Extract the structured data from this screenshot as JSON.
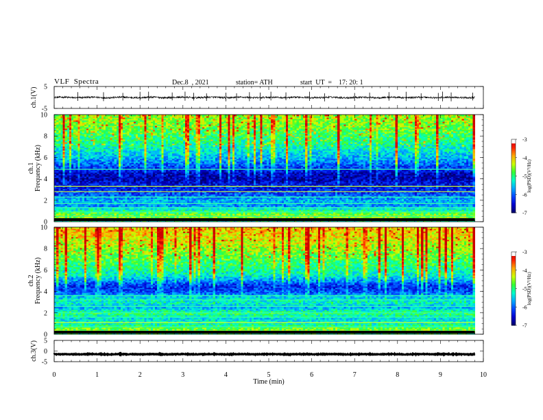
{
  "header": {
    "title": "VLF  Spectra",
    "date": "Dec.8  , 2021",
    "station": "station= ATH",
    "start_ut": "start  UT  =    17: 20: 1"
  },
  "colors": {
    "trace": "#000000",
    "colormap": [
      "#000066",
      "#0000cc",
      "#0044ff",
      "#00aaff",
      "#00ffcc",
      "#33ff33",
      "#ccff00",
      "#ffaa00",
      "#ff2200",
      "#cc0000",
      "#ffffff"
    ]
  },
  "chart_data": [
    {
      "type": "line",
      "name": "ch1-voltage",
      "ylabel": "ch.1(V)",
      "ylim": [
        -5,
        5
      ],
      "yticks": [
        "5",
        "-5"
      ],
      "xlim": [
        0,
        10
      ],
      "baseline": 0,
      "noise_amplitude": 0.4,
      "spike_times_min": [
        0.55,
        1.15,
        1.6,
        2.0,
        2.2,
        2.75,
        3.05,
        3.25,
        3.55,
        4.0,
        4.25,
        4.55,
        4.8,
        5.05,
        5.4,
        5.95,
        6.3,
        7.0,
        7.35,
        7.8,
        8.2,
        8.55,
        8.95,
        9.05,
        9.25,
        9.75
      ],
      "end_time_min": 9.8
    },
    {
      "type": "heatmap",
      "name": "ch1-spectrogram",
      "ylabel": "Frequency  (kHz)",
      "channel_label": "ch.1",
      "ylim": [
        0,
        10
      ],
      "yticks": [
        "0",
        "2",
        "4",
        "6",
        "8",
        "10"
      ],
      "xlim": [
        0,
        10
      ],
      "end_time_min": 9.8,
      "colorbar": {
        "label": "log(PSD)(V²/Hz)",
        "range": [
          -7,
          -3
        ],
        "ticks": [
          "-3",
          "-4",
          "-5",
          "-6",
          "-7"
        ]
      },
      "freq_profile_khz": [
        [
          0,
          -5.2
        ],
        [
          0.5,
          -4.4
        ],
        [
          1.0,
          -5.0
        ],
        [
          1.5,
          -5.8
        ],
        [
          2.0,
          -5.6
        ],
        [
          2.5,
          -6.0
        ],
        [
          3.0,
          -6.3
        ],
        [
          3.5,
          -6.4
        ],
        [
          4.0,
          -6.7
        ],
        [
          4.5,
          -6.6
        ],
        [
          5.0,
          -6.2
        ],
        [
          5.5,
          -5.9
        ],
        [
          6.0,
          -5.6
        ],
        [
          7.0,
          -5.2
        ],
        [
          8.0,
          -4.9
        ],
        [
          9.0,
          -4.6
        ],
        [
          10.0,
          -4.5
        ]
      ],
      "line_freqs_khz": [
        0.2,
        0.5,
        0.9,
        1.3,
        1.7,
        2.3,
        2.8,
        3.3,
        4.9
      ]
    },
    {
      "type": "heatmap",
      "name": "ch2-spectrogram",
      "ylabel": "Frequency  (kHz)",
      "channel_label": "ch.2",
      "ylim": [
        0,
        10
      ],
      "yticks": [
        "0",
        "2",
        "4",
        "6",
        "8",
        "10"
      ],
      "xlim": [
        0,
        10
      ],
      "end_time_min": 9.8,
      "colorbar": {
        "label": "log(PSD)(V²/Hz)",
        "range": [
          -7,
          -3
        ],
        "ticks": [
          "-3",
          "-4",
          "-5",
          "-6",
          "-7"
        ]
      },
      "freq_profile_khz": [
        [
          0,
          -5.0
        ],
        [
          0.5,
          -4.6
        ],
        [
          1.0,
          -5.2
        ],
        [
          1.5,
          -5.4
        ],
        [
          2.0,
          -4.9
        ],
        [
          2.5,
          -5.6
        ],
        [
          3.0,
          -5.2
        ],
        [
          3.5,
          -5.5
        ],
        [
          4.0,
          -6.1
        ],
        [
          4.5,
          -6.3
        ],
        [
          5.0,
          -5.8
        ],
        [
          5.5,
          -5.3
        ],
        [
          6.0,
          -5.1
        ],
        [
          7.0,
          -4.8
        ],
        [
          8.0,
          -4.5
        ],
        [
          9.0,
          -4.2
        ],
        [
          10.0,
          -4.0
        ]
      ],
      "line_freqs_khz": [
        0.3,
        0.7,
        1.1,
        1.6,
        2.0,
        2.6,
        3.2,
        3.6
      ]
    },
    {
      "type": "line",
      "name": "ch3-voltage",
      "ylabel": "ch.3(V)",
      "ylim": [
        -5,
        5
      ],
      "yticks": [
        "5",
        "0",
        "-5"
      ],
      "xlim": [
        0,
        10
      ],
      "baseline": -1.5,
      "noise_amplitude": 0.15,
      "spike_times_min": [],
      "end_time_min": 9.8
    }
  ],
  "x_axis": {
    "label": "Time  (min)",
    "ticks": [
      "0",
      "1",
      "2",
      "3",
      "4",
      "5",
      "6",
      "7",
      "8",
      "9",
      "10"
    ]
  }
}
